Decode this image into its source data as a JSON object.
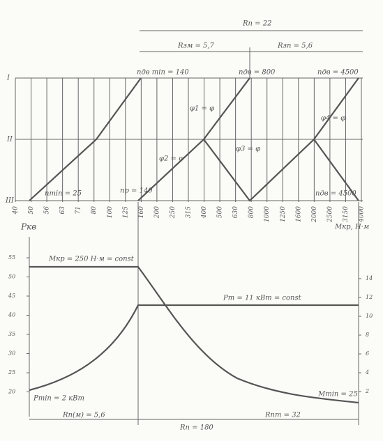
{
  "dimensions": {
    "total": "Rn = 22",
    "left": "Rзм = 5,7",
    "right": "Rзп = 5,6"
  },
  "rows": [
    "I",
    "II",
    "III"
  ],
  "top_labels": {
    "n_min": "nдв min = 140",
    "n_mid": "nдв = 800",
    "n_max": "nдв = 4500",
    "n_low": "nmin = 25",
    "n_p": "np = 140",
    "n_end": "nдв = 4500",
    "phi1": "φ1 = φ",
    "phi2": "φ2 = φ",
    "phi3": "φ3 = φ",
    "phi4": "φ4 = φ"
  },
  "scale": [
    "40",
    "50",
    "56",
    "63",
    "71",
    "80",
    "100",
    "125",
    "160",
    "200",
    "250",
    "315",
    "400",
    "500",
    "630",
    "800",
    "1000",
    "1250",
    "1600",
    "2000",
    "2500",
    "3150",
    "4000"
  ],
  "lower": {
    "left_axis_title": "Pкв",
    "right_axis_title": "Mкр, Н·м",
    "left_ticks": [
      "55",
      "50",
      "45",
      "40",
      "35",
      "30",
      "25",
      "20"
    ],
    "right_ticks": [
      "14",
      "12",
      "10",
      "8",
      "6",
      "4",
      "2"
    ],
    "torque_label": "Mкр = 250 Н·м = const",
    "power_label": "Pm = 11 кВт = const",
    "p_min": "Pmin = 2 кВт",
    "m_min": "Mmin = 25",
    "bottom_left": "Rn(м) = 5,6",
    "bottom_mid": "Rn = 180",
    "bottom_right": "Rnm = 32"
  }
}
